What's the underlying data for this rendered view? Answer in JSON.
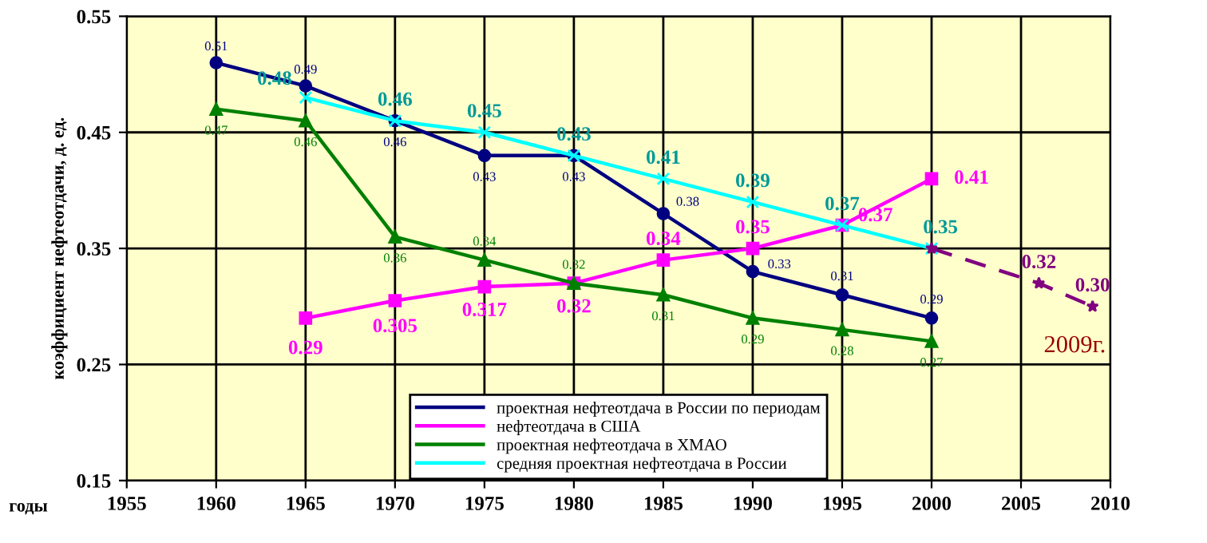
{
  "chart_data": {
    "type": "line",
    "ylabel": "коэффициент нефтеотдачи, д. ед.",
    "xlabel": "годы",
    "xlim": [
      1955,
      2010
    ],
    "ylim": [
      0.15,
      0.55
    ],
    "xticks": [
      1955,
      1960,
      1965,
      1970,
      1975,
      1980,
      1985,
      1990,
      1995,
      2000,
      2005,
      2010
    ],
    "yticks": [
      0.15,
      0.25,
      0.35,
      0.45,
      0.55
    ],
    "grid": true,
    "legend": "bottom",
    "annotations": [
      {
        "text": "2009г.",
        "x": 2009,
        "y": 0.3
      }
    ],
    "series": [
      {
        "name": "проектная нефтеотдача в России по периодам",
        "color": "#000080",
        "marker": "circle",
        "x": [
          1960,
          1965,
          1970,
          1975,
          1980,
          1985,
          1990,
          1995,
          2000
        ],
        "values": [
          0.51,
          0.49,
          0.46,
          0.43,
          0.43,
          0.38,
          0.33,
          0.31,
          0.29
        ],
        "value_labels": [
          "0.51",
          "0.49",
          "0.46",
          "0.43",
          "0.43",
          "0.38",
          "0.33",
          "0.31",
          "0.29"
        ]
      },
      {
        "name": "нефтеотдача в США",
        "color": "#ff00ff",
        "marker": "square",
        "x": [
          1965,
          1970,
          1975,
          1980,
          1985,
          1990,
          1995,
          2000
        ],
        "values": [
          0.29,
          0.305,
          0.317,
          0.32,
          0.34,
          0.35,
          0.37,
          0.41
        ],
        "value_labels": [
          "0.29",
          "0.305",
          "0.317",
          "0.32",
          "0.34",
          "0.35",
          "0.37",
          "0.41"
        ]
      },
      {
        "name": "проектная нефтеотдача в ХМАО",
        "color": "#008000",
        "marker": "triangle",
        "x": [
          1960,
          1965,
          1970,
          1975,
          1980,
          1985,
          1990,
          1995,
          2000
        ],
        "values": [
          0.47,
          0.46,
          0.36,
          0.34,
          0.32,
          0.31,
          0.29,
          0.28,
          0.27
        ],
        "value_labels": [
          "0.47",
          "0.46",
          "0.36",
          "0.34",
          "0.32",
          "0.31",
          "0.29",
          "0.28",
          "0.27"
        ]
      },
      {
        "name": "средняя проектная нефтеотдача в России",
        "color": "#00ffff",
        "marker": "cross",
        "x": [
          1965,
          1970,
          1975,
          1980,
          1985,
          1990,
          1995,
          2000
        ],
        "values": [
          0.48,
          0.46,
          0.45,
          0.43,
          0.41,
          0.39,
          0.37,
          0.35
        ],
        "value_labels": [
          "0.48",
          "0.46",
          "0.45",
          "0.43",
          "0.41",
          "0.39",
          "0.37",
          "0.35"
        ]
      },
      {
        "color": "#800080",
        "marker": "star",
        "line_style": "dashed",
        "x": [
          2000,
          2006,
          2009
        ],
        "values": [
          0.35,
          0.32,
          0.3
        ],
        "value_labels": [
          null,
          "0.32",
          "0.30"
        ]
      }
    ]
  }
}
